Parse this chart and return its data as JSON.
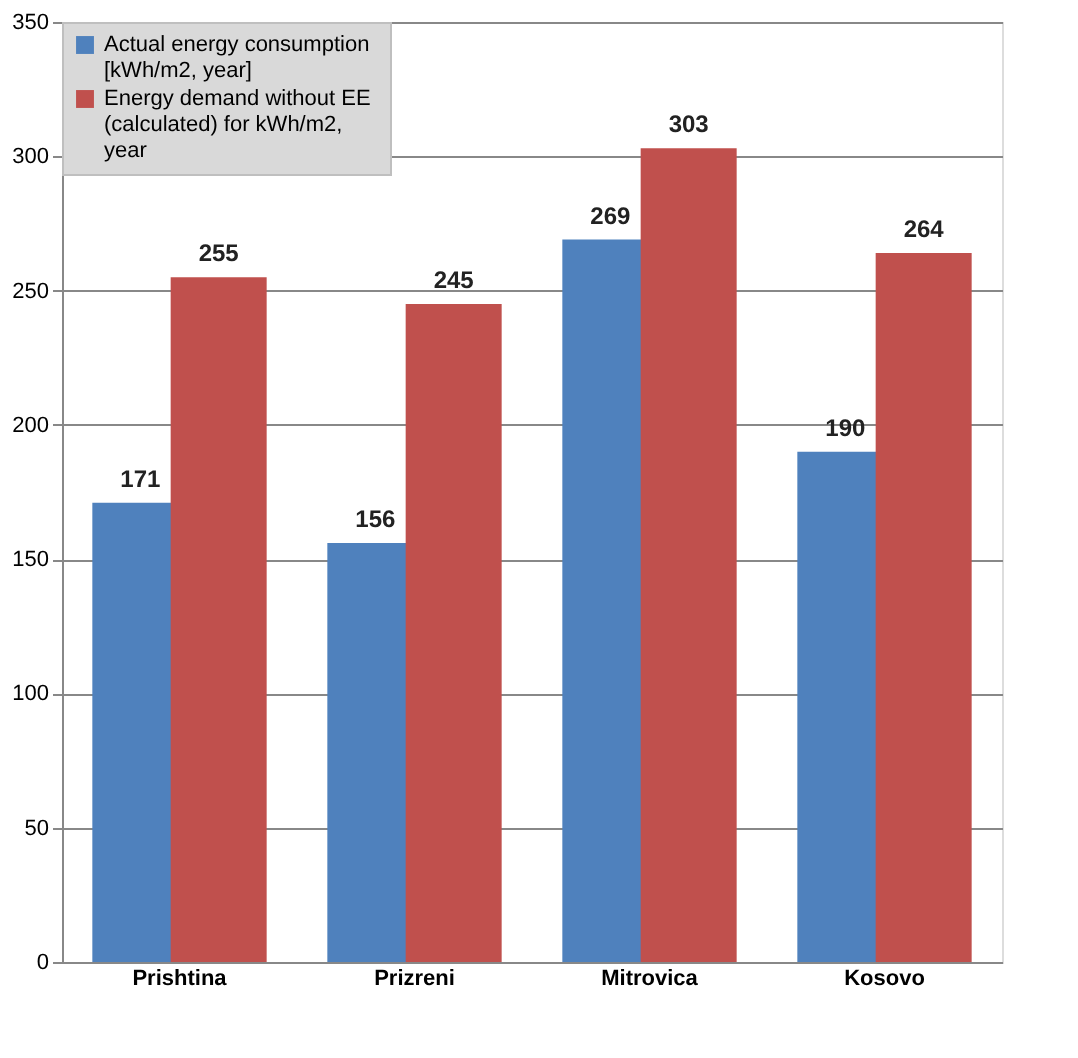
{
  "chart_data": {
    "type": "bar",
    "categories": [
      "Prishtina",
      "Prizreni",
      "Mitrovica",
      "Kosovo"
    ],
    "series": [
      {
        "name": "Actual energy consumption [kWh/m2, year]",
        "color": "#4f81bd",
        "values": [
          171,
          156,
          269,
          190
        ]
      },
      {
        "name": "Energy demand  without EE (calculated) for kWh/m2, year",
        "color": "#c0504d",
        "values": [
          255,
          245,
          303,
          264
        ]
      }
    ],
    "ylim": [
      0,
      350
    ],
    "yticks": [
      0,
      50,
      100,
      150,
      200,
      250,
      300,
      350
    ],
    "grid": "y",
    "legend": "top left",
    "data_labels": true
  }
}
